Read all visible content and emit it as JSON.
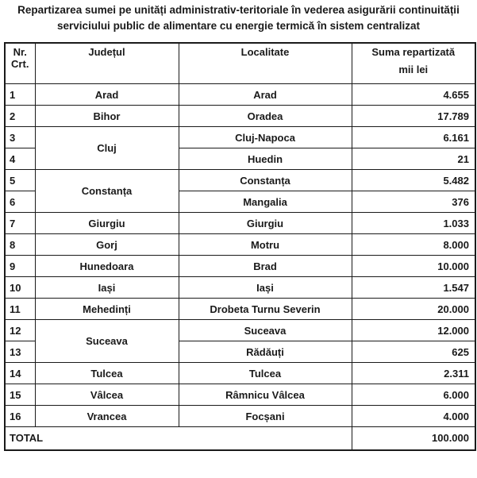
{
  "title": "Repartizarea sumei pe unități administrativ-teritoriale în vederea asigurării continuității serviciului public de alimentare cu energie termică în sistem centralizat",
  "table": {
    "headers": {
      "nr_line1": "Nr.",
      "nr_line2": "Crt.",
      "judet": "Județul",
      "localitate": "Localitate",
      "suma_line1": "Suma repartizată",
      "suma_line2": "mii lei"
    },
    "rows": [
      {
        "nr": "1",
        "judet": "Arad",
        "judet_span": 1,
        "localitate": "Arad",
        "suma": "4.655"
      },
      {
        "nr": "2",
        "judet": "Bihor",
        "judet_span": 1,
        "localitate": "Oradea",
        "suma": "17.789"
      },
      {
        "nr": "3",
        "judet": "Cluj",
        "judet_span": 2,
        "localitate": "Cluj-Napoca",
        "suma": "6.161"
      },
      {
        "nr": "4",
        "judet": null,
        "judet_span": 0,
        "localitate": "Huedin",
        "suma": "21"
      },
      {
        "nr": "5",
        "judet": "Constanța",
        "judet_span": 2,
        "localitate": "Constanța",
        "suma": "5.482"
      },
      {
        "nr": "6",
        "judet": null,
        "judet_span": 0,
        "localitate": "Mangalia",
        "suma": "376"
      },
      {
        "nr": "7",
        "judet": "Giurgiu",
        "judet_span": 1,
        "localitate": "Giurgiu",
        "suma": "1.033"
      },
      {
        "nr": "8",
        "judet": "Gorj",
        "judet_span": 1,
        "localitate": "Motru",
        "suma": "8.000"
      },
      {
        "nr": "9",
        "judet": "Hunedoara",
        "judet_span": 1,
        "localitate": "Brad",
        "suma": "10.000"
      },
      {
        "nr": "10",
        "judet": "Iași",
        "judet_span": 1,
        "localitate": "Iași",
        "suma": "1.547"
      },
      {
        "nr": "11",
        "judet": "Mehedinți",
        "judet_span": 1,
        "localitate": "Drobeta Turnu Severin",
        "suma": "20.000"
      },
      {
        "nr": "12",
        "judet": "Suceava",
        "judet_span": 2,
        "localitate": "Suceava",
        "suma": "12.000"
      },
      {
        "nr": "13",
        "judet": null,
        "judet_span": 0,
        "localitate": "Rădăuți",
        "suma": "625"
      },
      {
        "nr": "14",
        "judet": "Tulcea",
        "judet_span": 1,
        "localitate": "Tulcea",
        "suma": "2.311"
      },
      {
        "nr": "15",
        "judet": "Vâlcea",
        "judet_span": 1,
        "localitate": "Râmnicu Vâlcea",
        "suma": "6.000"
      },
      {
        "nr": "16",
        "judet": "Vrancea",
        "judet_span": 1,
        "localitate": "Focșani",
        "suma": "4.000"
      }
    ],
    "total": {
      "label": "TOTAL",
      "value": "100.000"
    }
  },
  "colors": {
    "text": "#1a1a1a",
    "border": "#1a1a1a",
    "background": "#ffffff"
  }
}
